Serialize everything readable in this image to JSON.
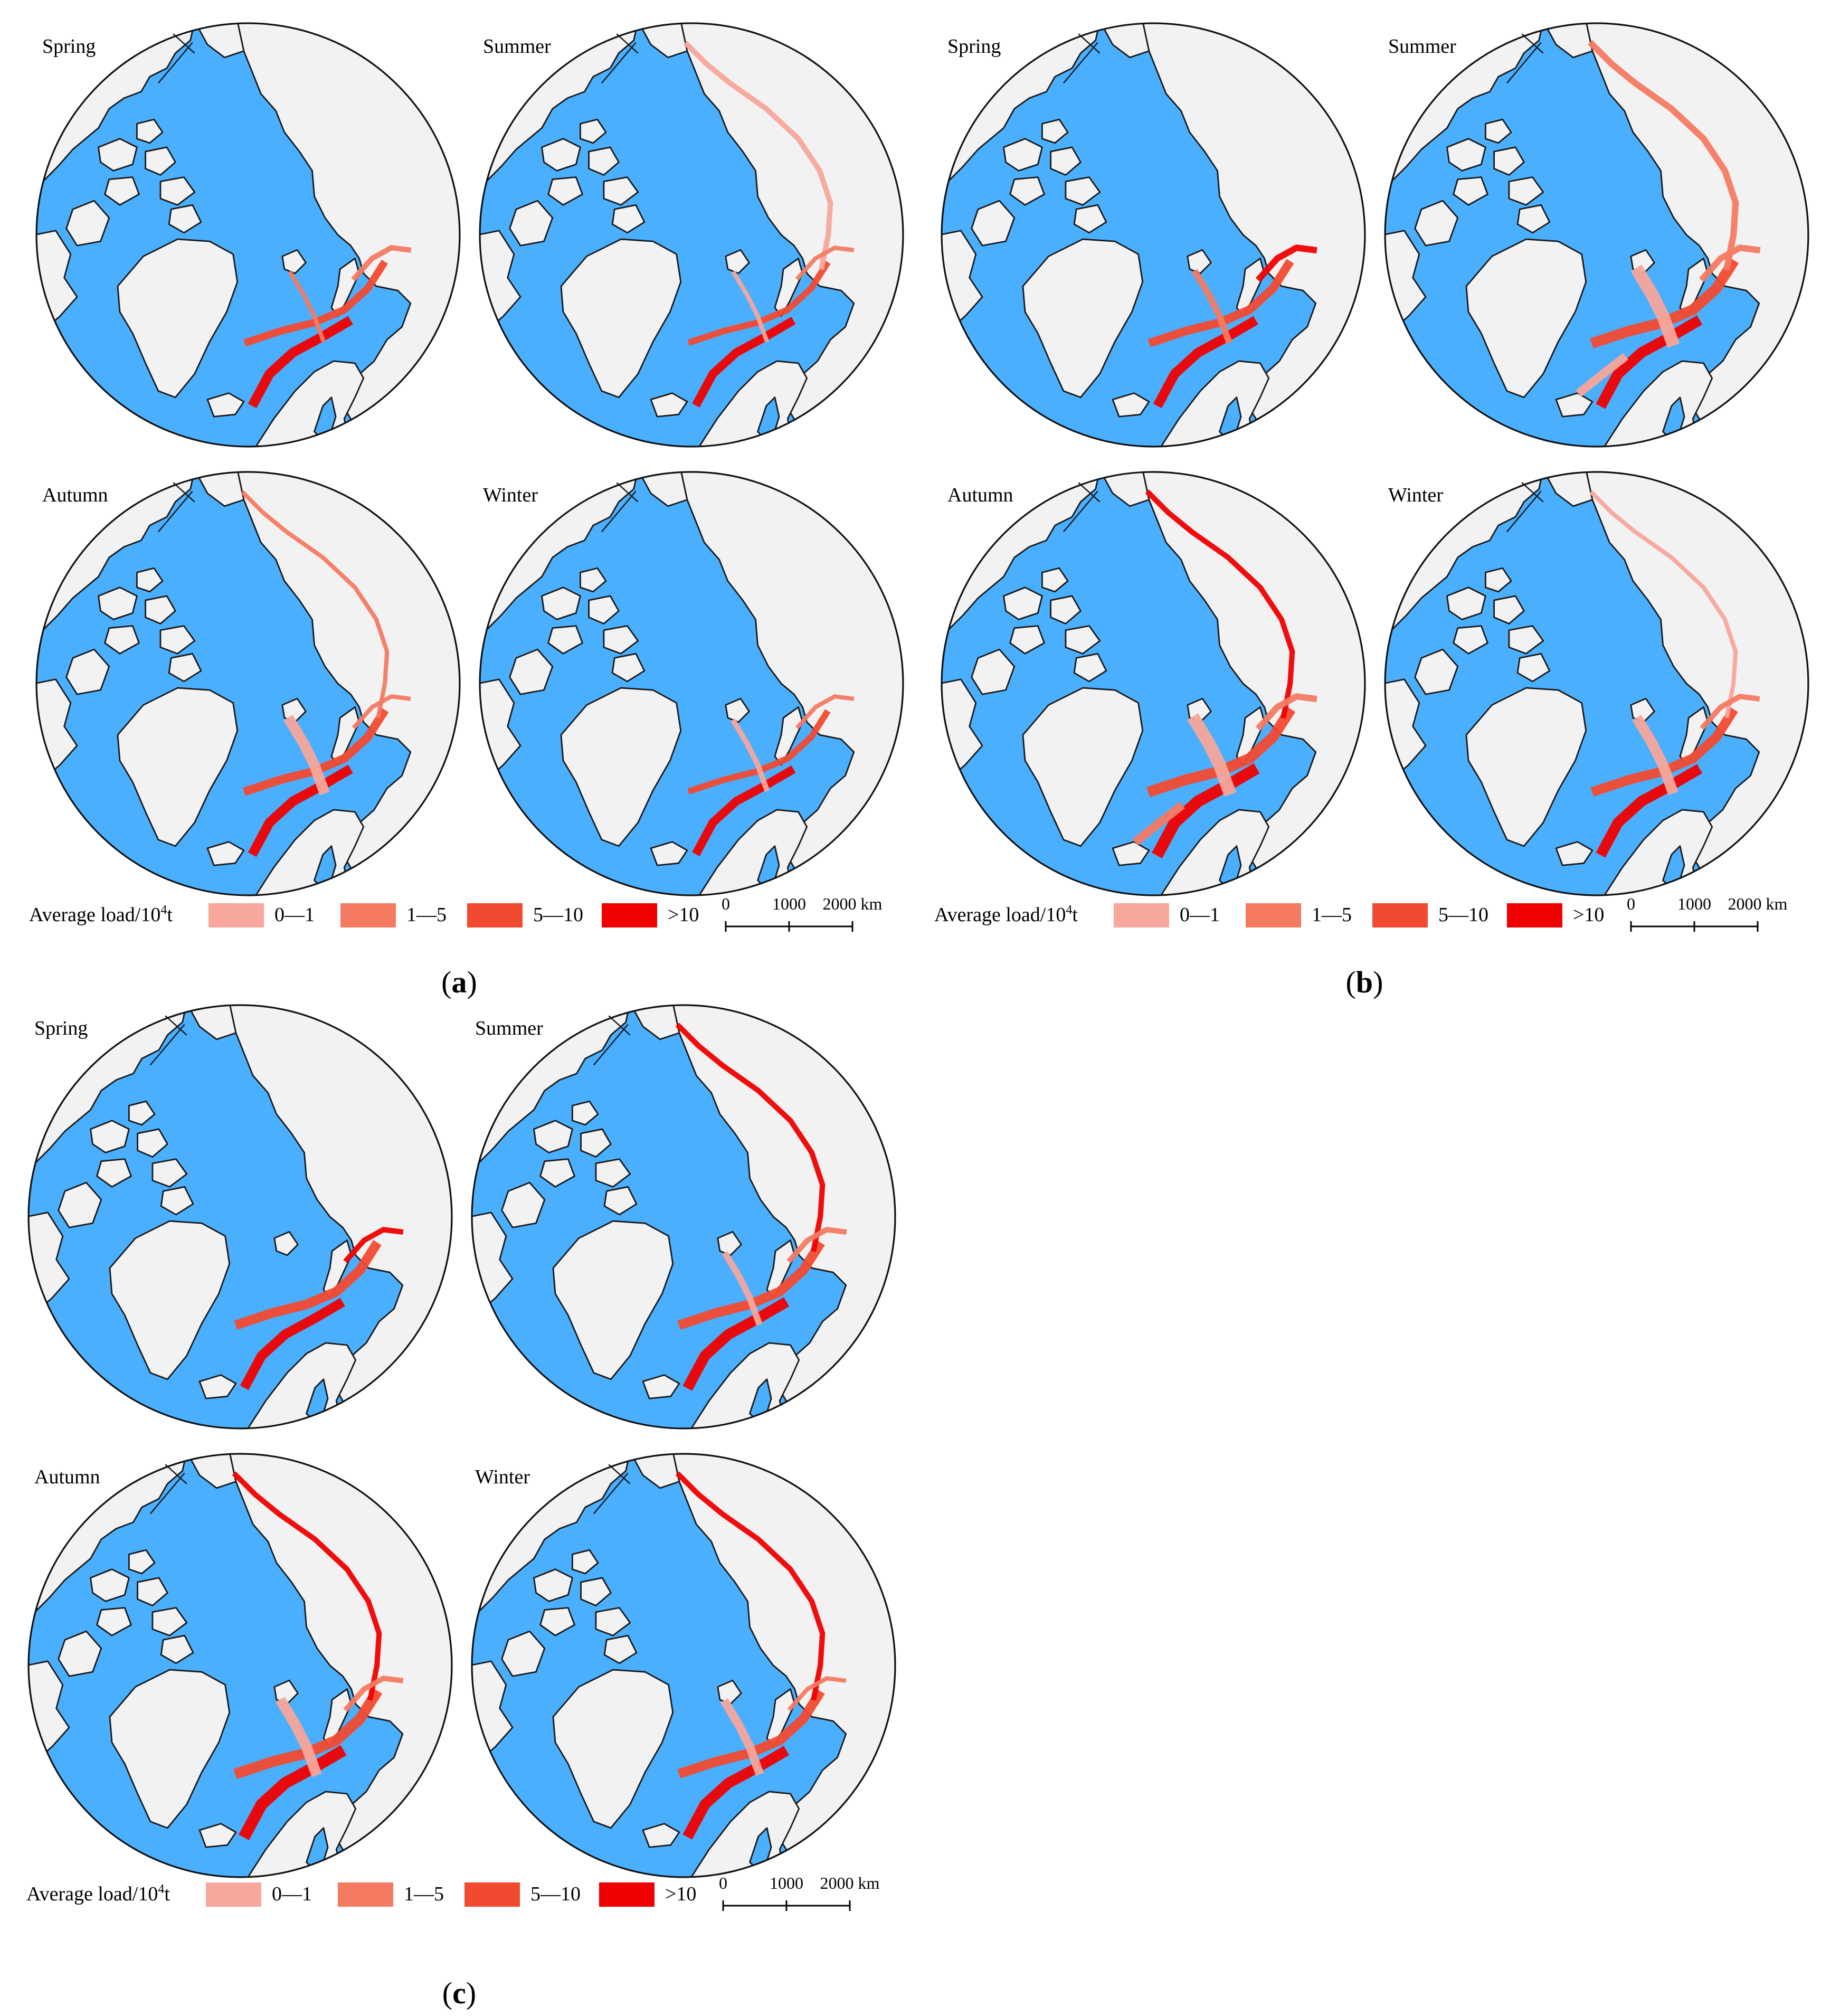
{
  "colors": {
    "ocean": "#4aafff",
    "land": "#f2f2f2",
    "coast": "#1a1a1a",
    "load_0_1": "#f7a79b",
    "load_1_5": "#f47a62",
    "load_5_10": "#f24a30",
    "load_gt10": "#f00000"
  },
  "seasons": [
    "Spring",
    "Summer",
    "Autumn",
    "Winter"
  ],
  "legend": {
    "title": "Average load/10",
    "title_sup": "4",
    "title_unit": "t",
    "classes": [
      {
        "label": "0—1",
        "color_key": "load_0_1"
      },
      {
        "label": "1—5",
        "color_key": "load_1_5"
      },
      {
        "label": "5—10",
        "color_key": "load_5_10"
      },
      {
        "label": ">10",
        "color_key": "load_gt10"
      }
    ]
  },
  "scale_bar": {
    "ticks": [
      "0",
      "1000",
      "2000 km"
    ]
  },
  "panels": [
    {
      "label": "a",
      "open": "(",
      "close": ")"
    },
    {
      "label": "b",
      "open": "(",
      "close": ")"
    },
    {
      "label": "c",
      "open": "(",
      "close": ")"
    }
  ]
}
